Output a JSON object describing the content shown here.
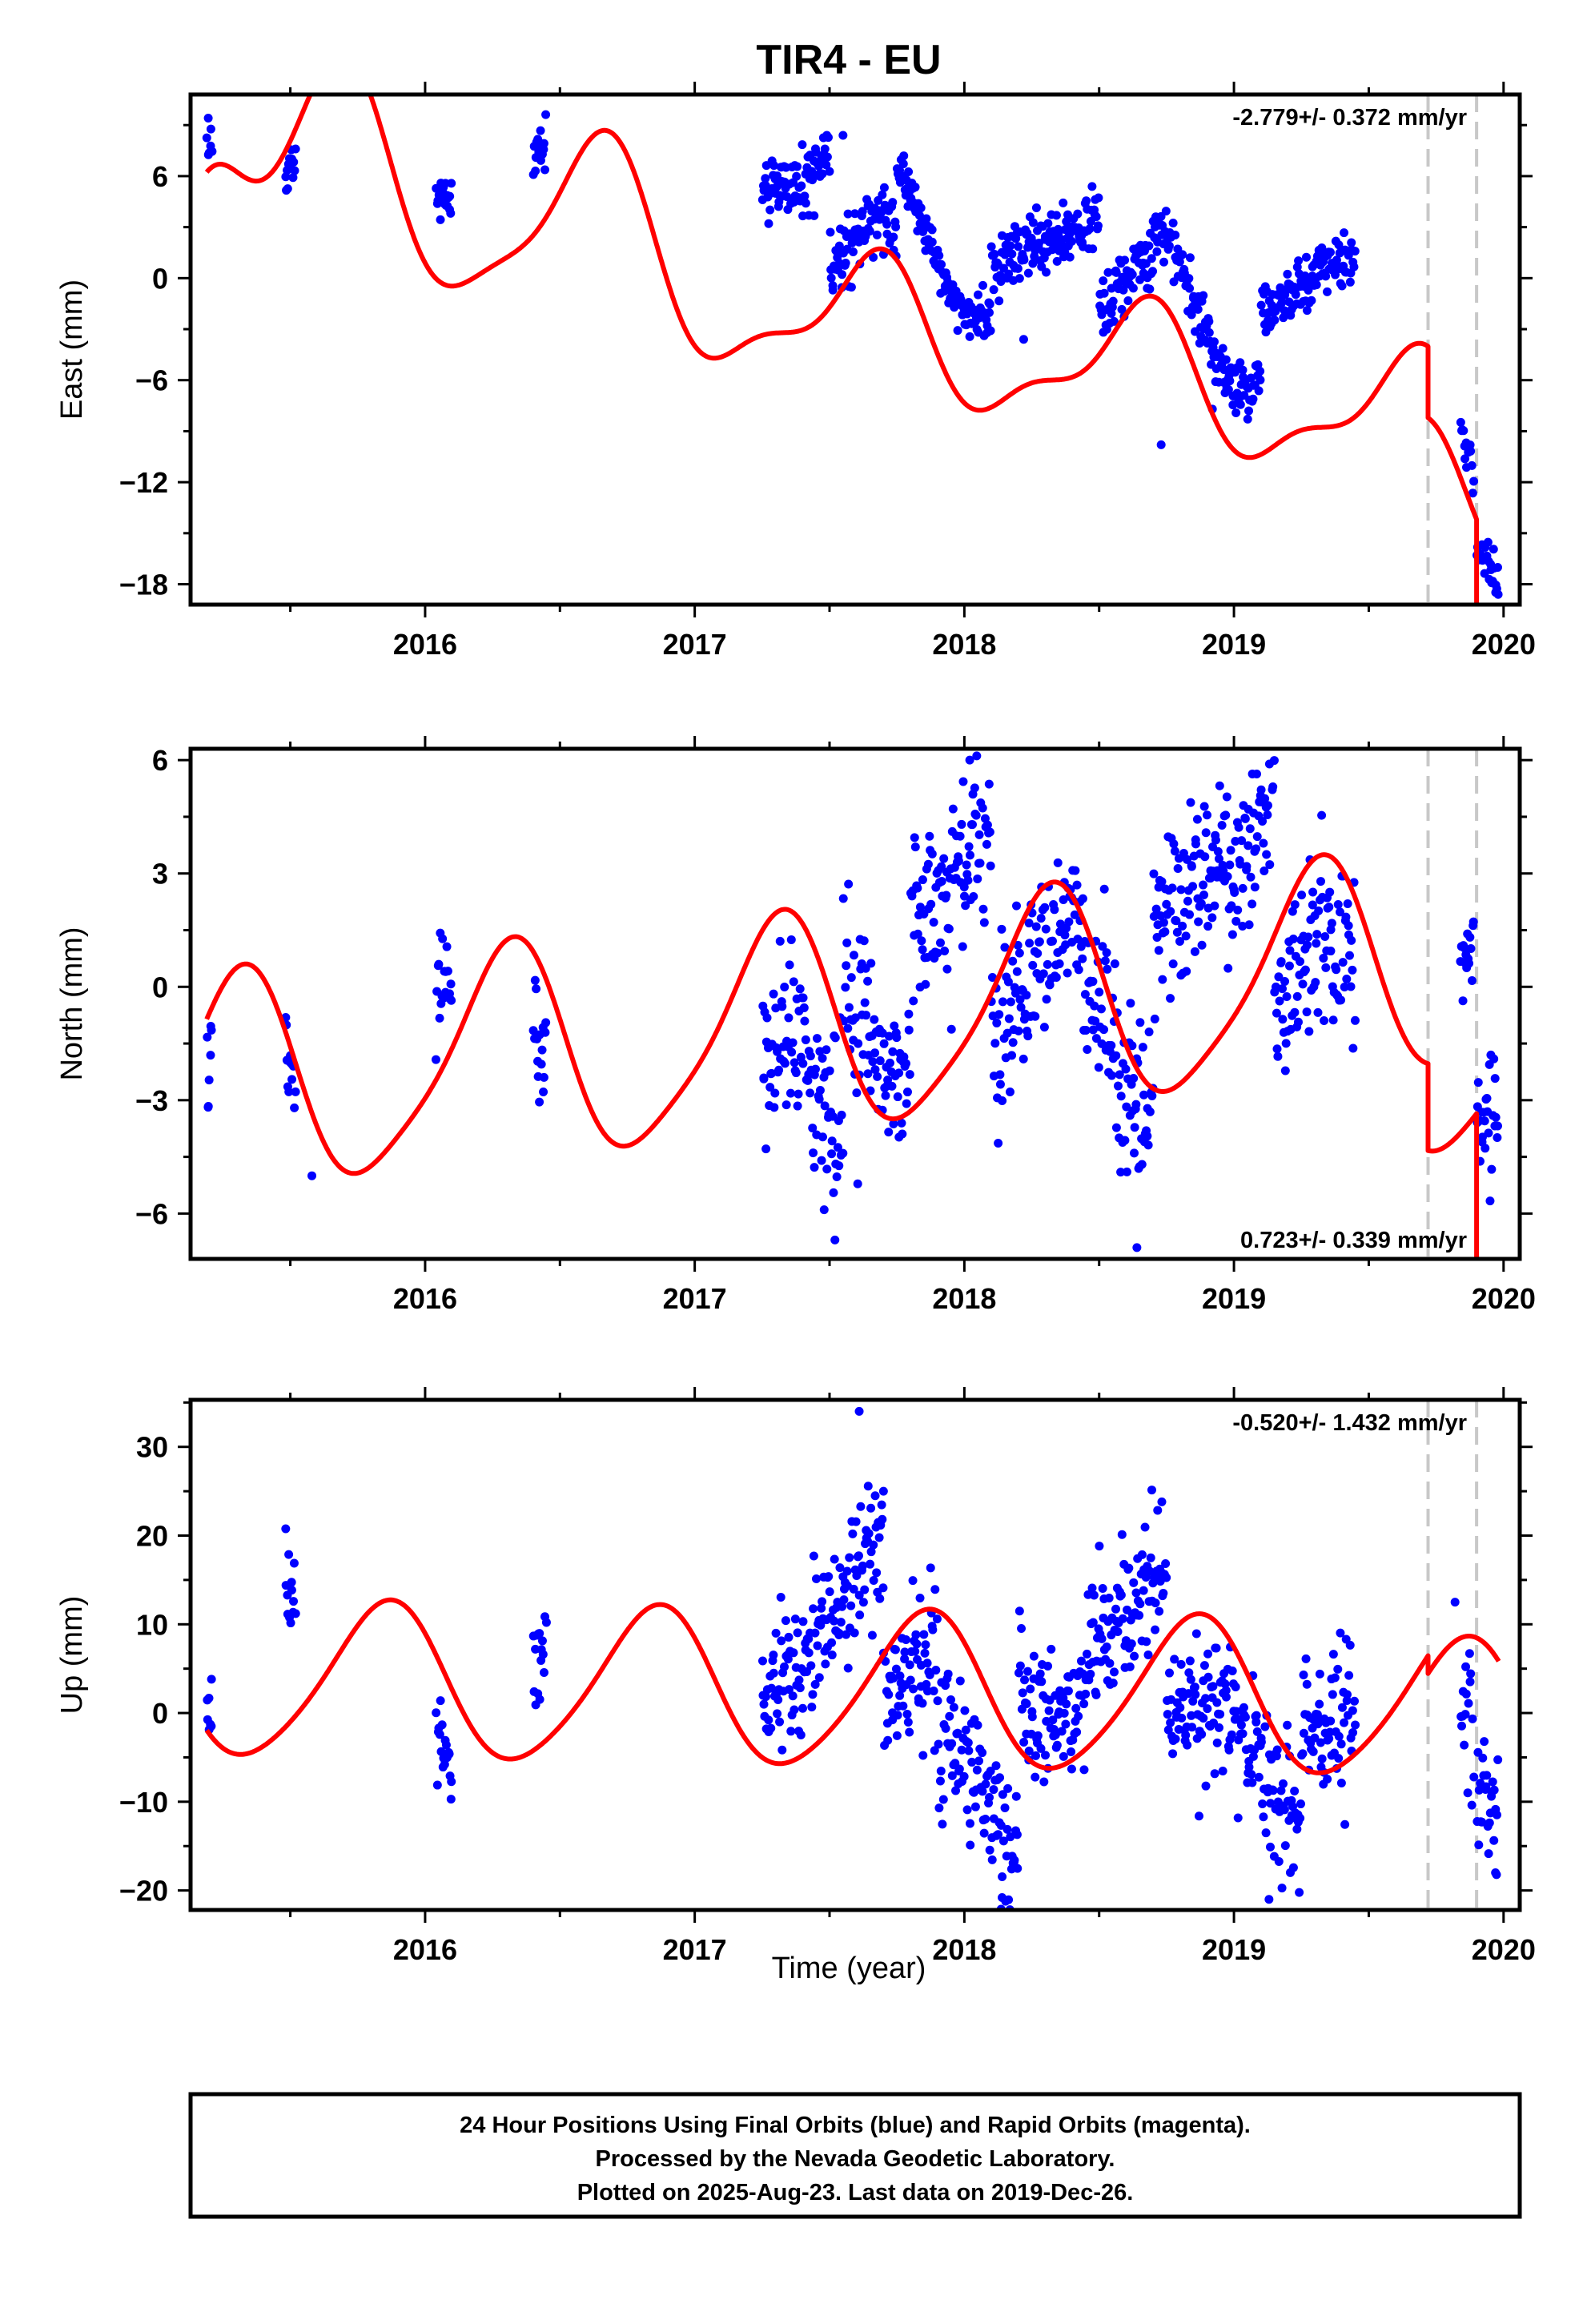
{
  "title": "TIR4 - EU",
  "xlabel": "Time (year)",
  "footer": {
    "lines": [
      "24 Hour Positions Using Final Orbits (blue) and Rapid Orbits (magenta).",
      "Processed by the Nevada Geodetic Laboratory.",
      "Plotted on 2025-Aug-23. Last data on 2019-Dec-26."
    ]
  },
  "colors": {
    "points": "#0000ff",
    "model": "#ff0000",
    "steps": "#c8c8c8",
    "frame": "#000000"
  },
  "chart_data": [
    {
      "type": "scatter",
      "component": "east",
      "ylabel": "East (mm)",
      "rate_text": "-2.779+/- 0.372 mm/yr",
      "rate_position": "top-right",
      "xlim": [
        2015.13,
        2020.06
      ],
      "ylim": [
        -19.2,
        10.8
      ],
      "xticks": [
        2016,
        2017,
        2018,
        2019,
        2020
      ],
      "yticks": [
        6,
        0,
        -6,
        -12,
        -18
      ],
      "grid": false,
      "step_epochs": [
        2019.72,
        2019.9
      ],
      "series": [
        {
          "kind": "points",
          "clusters": [
            [
              2015.19,
              2015.21,
              7.8,
              0.9
            ],
            [
              2015.48,
              2015.52,
              6.5,
              0.5
            ],
            [
              2016.04,
              2016.1,
              4.5,
              0.9
            ],
            [
              2016.4,
              2016.45,
              7.5,
              0.9
            ],
            [
              2017.25,
              2017.5,
              5.6,
              1.0
            ],
            [
              2017.5,
              2017.75,
              3.0,
              0.9
            ],
            [
              2017.75,
              2018.1,
              0.0,
              0.7
            ],
            [
              2018.1,
              2018.3,
              1.5,
              1.0
            ],
            [
              2018.3,
              2018.5,
              2.6,
              0.9
            ],
            [
              2018.5,
              2018.7,
              0.0,
              0.9
            ],
            [
              2018.7,
              2019.1,
              -3.2,
              0.8
            ],
            [
              2019.1,
              2019.3,
              -1.0,
              0.9
            ],
            [
              2019.3,
              2019.45,
              0.8,
              0.8
            ],
            [
              2019.84,
              2019.89,
              -10.0,
              0.7
            ],
            [
              2019.9,
              2019.98,
              -16.8,
              0.8
            ]
          ],
          "outliers": [
            [
              2018.73,
              -9.8
            ],
            [
              2018.92,
              -7.7
            ],
            [
              2019.98,
              -18.6
            ],
            [
              2017.55,
              8.4
            ],
            [
              2018.22,
              -3.6
            ]
          ]
        },
        {
          "kind": "model",
          "linear": [
            2017.5,
            -2.5,
            -2.779
          ],
          "annual": [
            3.6,
            0.4
          ],
          "semiannual": [
            1.4,
            0.1
          ],
          "transient": [
            [
              2015.7,
              6.0,
              0.33
            ],
            [
              2016.6,
              4.5,
              0.28
            ],
            [
              2015.2,
              4.0,
              0.15
            ]
          ],
          "steps": [
            [
              2019.72,
              -4.2
            ],
            [
              2019.9,
              -5.4
            ]
          ]
        }
      ]
    },
    {
      "type": "scatter",
      "component": "north",
      "ylabel": "North (mm)",
      "rate_text": "0.723+/- 0.339 mm/yr",
      "rate_position": "bottom-right",
      "xlim": [
        2015.13,
        2020.06
      ],
      "ylim": [
        -7.2,
        6.3
      ],
      "xticks": [
        2016,
        2017,
        2018,
        2019,
        2020
      ],
      "yticks": [
        6,
        3,
        0,
        -3,
        -6
      ],
      "grid": false,
      "step_epochs": [
        2019.72,
        2019.9
      ],
      "series": [
        {
          "kind": "points",
          "clusters": [
            [
              2015.19,
              2015.21,
              -2.0,
              0.8
            ],
            [
              2015.48,
              2015.52,
              -2.0,
              0.5
            ],
            [
              2016.04,
              2016.1,
              0.2,
              0.8
            ],
            [
              2016.4,
              2016.45,
              -1.6,
              0.8
            ],
            [
              2017.25,
              2017.55,
              -1.6,
              1.1
            ],
            [
              2017.55,
              2017.8,
              -1.8,
              1.2
            ],
            [
              2017.8,
              2018.1,
              2.8,
              1.3
            ],
            [
              2018.1,
              2018.35,
              0.0,
              1.1
            ],
            [
              2018.35,
              2018.7,
              -1.0,
              1.1
            ],
            [
              2018.7,
              2018.95,
              2.5,
              1.2
            ],
            [
              2018.95,
              2019.15,
              3.5,
              1.2
            ],
            [
              2019.15,
              2019.45,
              1.2,
              1.1
            ],
            [
              2019.84,
              2019.89,
              0.8,
              0.7
            ],
            [
              2019.9,
              2019.98,
              -3.6,
              0.9
            ]
          ],
          "outliers": [
            [
              2017.48,
              -5.9
            ],
            [
              2017.52,
              -6.7
            ],
            [
              2018.64,
              -6.9
            ],
            [
              2018.63,
              -4.4
            ],
            [
              2015.58,
              -5.0
            ],
            [
              2018.02,
              6.0
            ]
          ]
        },
        {
          "kind": "model",
          "linear": [
            2017.5,
            -1.0,
            0.723
          ],
          "annual": [
            2.8,
            0.05
          ],
          "semiannual": [
            0.5,
            0.25
          ],
          "transient": [],
          "steps": [
            [
              2019.72,
              -2.3
            ],
            [
              2019.9,
              -5.2
            ]
          ]
        }
      ]
    },
    {
      "type": "scatter",
      "component": "up",
      "ylabel": "Up (mm)",
      "rate_text": "-0.520+/- 1.432 mm/yr",
      "rate_position": "top-right",
      "xlim": [
        2015.13,
        2020.06
      ],
      "ylim": [
        -22.2,
        35.3
      ],
      "xticks": [
        2016,
        2017,
        2018,
        2019,
        2020
      ],
      "yticks": [
        30,
        20,
        10,
        0,
        -10,
        -20
      ],
      "grid": false,
      "step_epochs": [
        2019.72,
        2019.9
      ],
      "series": [
        {
          "kind": "points",
          "clusters": [
            [
              2015.19,
              2015.21,
              0.0,
              2.0
            ],
            [
              2015.48,
              2015.52,
              12.0,
              4.0
            ],
            [
              2016.04,
              2016.1,
              -3.0,
              2.5
            ],
            [
              2016.4,
              2016.45,
              7.0,
              3.5
            ],
            [
              2017.25,
              2017.45,
              4.0,
              4.0
            ],
            [
              2017.45,
              2017.7,
              14.0,
              4.0
            ],
            [
              2017.7,
              2017.9,
              4.0,
              4.0
            ],
            [
              2017.9,
              2018.2,
              -7.0,
              4.0
            ],
            [
              2018.2,
              2018.45,
              0.0,
              4.0
            ],
            [
              2018.45,
              2018.75,
              10.0,
              4.0
            ],
            [
              2018.75,
              2018.95,
              0.0,
              4.0
            ],
            [
              2018.95,
              2019.25,
              -6.0,
              4.0
            ],
            [
              2019.25,
              2019.45,
              -2.0,
              4.0
            ],
            [
              2019.84,
              2019.89,
              -1.0,
              4.0
            ],
            [
              2019.9,
              2019.98,
              -8.0,
              4.0
            ]
          ],
          "outliers": [
            [
              2017.61,
              34.0
            ],
            [
              2017.7,
              25.0
            ],
            [
              2018.14,
              -20.8
            ],
            [
              2019.13,
              -21.0
            ],
            [
              2019.97,
              -18.0
            ],
            [
              2019.82,
              12.5
            ]
          ]
        },
        {
          "kind": "model",
          "linear": [
            2017.5,
            2.5,
            -0.52
          ],
          "annual": [
            8.7,
            0.6
          ],
          "semiannual": [
            1.0,
            0.3
          ],
          "transient": [],
          "steps": [
            [
              2019.72,
              -2.0
            ]
          ]
        }
      ]
    }
  ]
}
